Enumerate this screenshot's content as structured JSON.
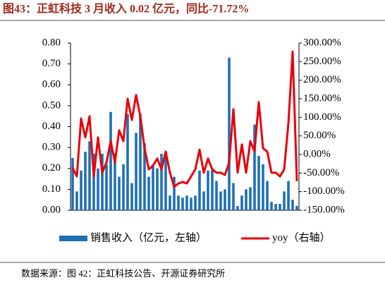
{
  "title": "图43：正虹科技 3 月收入 0.02 亿元，同比-71.72%",
  "source": "数据来源：图 42：正虹科技公告、开源证券研究所",
  "chart_data": {
    "type": "bar-line",
    "categories": [
      null,
      null,
      null,
      null,
      null,
      null,
      null,
      null,
      null,
      null,
      null,
      null,
      null,
      null,
      null,
      null,
      null,
      null,
      null,
      null,
      null,
      null,
      null,
      null,
      null,
      null,
      null,
      null,
      null,
      null,
      null,
      null,
      null,
      null,
      null,
      null,
      null,
      null,
      null,
      null,
      null,
      null,
      null,
      null,
      null,
      null,
      null,
      null,
      null,
      null,
      null,
      null,
      null,
      null
    ],
    "series": [
      {
        "name": "销售收入（亿元，左轴）",
        "color": "#1f6fb5",
        "type": "bar",
        "values": [
          0.25,
          0.09,
          0.19,
          0.28,
          0.33,
          0.27,
          0.2,
          0.27,
          0.22,
          0.47,
          0.27,
          0.16,
          0.22,
          0.46,
          0.13,
          0.37,
          0.46,
          0.32,
          0.16,
          0.21,
          0.2,
          0.27,
          0.26,
          0.07,
          0.16,
          0.07,
          0.06,
          0.07,
          0.06,
          0.07,
          0.19,
          0.09,
          0.19,
          0.2,
          0.14,
          0.09,
          0.1,
          0.73,
          0.13,
          0.02,
          0.07,
          0.1,
          0.11,
          0.41,
          0.26,
          0.22,
          0.14,
          0.04,
          0.03,
          0.03,
          0.09,
          0.14,
          0.05,
          0.02
        ]
      },
      {
        "name": "yoy（右轴）",
        "color": "#e8000b",
        "type": "line",
        "axis": "y2",
        "values": [
          -36,
          -59,
          97,
          46,
          103,
          -59,
          46,
          -49,
          -21,
          36,
          -21,
          65,
          36,
          150,
          93,
          160,
          103,
          17,
          -40,
          -30,
          -11,
          -40,
          8,
          -49,
          -87,
          -78,
          -74,
          -78,
          -59,
          -40,
          13,
          -49,
          -11,
          -40,
          -49,
          -49,
          -55,
          -21,
          122,
          -49,
          27,
          -49,
          36,
          8,
          141,
          17,
          8,
          -49,
          -49,
          -59,
          -40,
          84,
          277,
          -71.72
        ]
      }
    ],
    "ylim": [
      0,
      0.8
    ],
    "yticks": [
      {
        "value": 0,
        "label": "0.00"
      },
      {
        "value": 0.1,
        "label": "0.10"
      },
      {
        "value": 0.2,
        "label": "0.20"
      },
      {
        "value": 0.3,
        "label": "0.30"
      },
      {
        "value": 0.4,
        "label": "0.40"
      },
      {
        "value": 0.5,
        "label": "0.50"
      },
      {
        "value": 0.6,
        "label": "0.60"
      },
      {
        "value": 0.7,
        "label": "0.70"
      },
      {
        "value": 0.8,
        "label": "0.80"
      }
    ],
    "y2lim": [
      -150,
      300
    ],
    "y2ticks": [
      {
        "value": -150,
        "label": "-150.00%"
      },
      {
        "value": -100,
        "label": "-100.00%"
      },
      {
        "value": -50,
        "label": "-50.00%"
      },
      {
        "value": 0,
        "label": "0.00%"
      },
      {
        "value": 50,
        "label": "50.00%"
      },
      {
        "value": 100,
        "label": "100.00%"
      },
      {
        "value": 150,
        "label": "150.00%"
      },
      {
        "value": 200,
        "label": "200.00%"
      },
      {
        "value": 250,
        "label": "250.00%"
      },
      {
        "value": 300,
        "label": "300.00%"
      }
    ]
  }
}
